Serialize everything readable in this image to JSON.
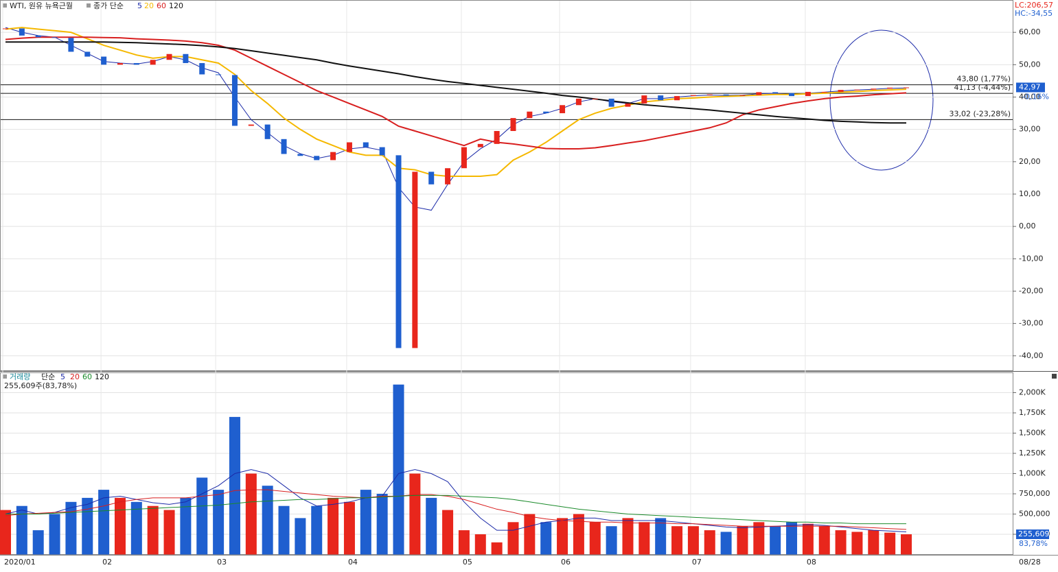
{
  "chart_data": {
    "type": "candlestick",
    "title": "WTI, 원유 뉴욕근월",
    "ma_label": "종가 단순",
    "categories": [
      "2020/01",
      null,
      null,
      null,
      null,
      null,
      "02",
      null,
      null,
      null,
      null,
      null,
      null,
      "03",
      null,
      null,
      null,
      null,
      null,
      null,
      null,
      "04",
      null,
      null,
      null,
      null,
      null,
      null,
      "05",
      null,
      null,
      null,
      null,
      null,
      "06",
      null,
      null,
      null,
      null,
      null,
      null,
      null,
      "07",
      null,
      null,
      null,
      null,
      null,
      null,
      "08",
      null,
      null,
      null,
      null,
      null,
      null
    ],
    "x_end_label": "08/28",
    "close": [
      61.2,
      59,
      58.5,
      58.3,
      54,
      52.5,
      50,
      50.5,
      50,
      51.5,
      53.3,
      50.5,
      47,
      46.8,
      31.1,
      31.5,
      27,
      22.4,
      21.8,
      20.5,
      23,
      26,
      24.5,
      22,
      -37.6,
      16.9,
      13,
      18,
      24.5,
      25.5,
      29.5,
      33.5,
      35.5,
      35,
      37.5,
      39.5,
      39.5,
      37,
      38,
      40.5,
      39,
      40.3,
      40.6,
      40.8,
      40.4,
      40.6,
      41.5,
      41.2,
      40.3,
      41.6,
      41.6,
      42.2,
      42.3,
      42.6,
      42.9,
      42.97
    ],
    "up_color": "#e8261c",
    "down_color": "#1f5fcf",
    "series": [
      {
        "name": "5",
        "color": "#1b2aa8",
        "values": [
          61.5,
          60,
          59,
          58.5,
          56,
          53.5,
          51,
          50.5,
          50.2,
          51,
          52.5,
          51.5,
          49,
          47.5,
          40,
          33,
          29,
          25,
          22.5,
          21,
          22,
          24,
          24.5,
          23.5,
          12,
          6,
          5,
          13,
          20,
          24,
          27,
          31.5,
          34,
          35,
          36.5,
          38.5,
          39.5,
          38.5,
          38,
          39.5,
          39.5,
          40,
          40.4,
          40.6,
          40.5,
          40.6,
          41,
          41.2,
          40.8,
          41.2,
          41.5,
          41.9,
          42.2,
          42.4,
          42.7,
          42.8
        ]
      },
      {
        "name": "20",
        "color": "#f5b800",
        "values": [
          61,
          61.5,
          61,
          60.5,
          60,
          58,
          56,
          54.5,
          53,
          52,
          52.5,
          52.5,
          51.5,
          50.5,
          47,
          42,
          38,
          33.5,
          30,
          27,
          25,
          23,
          22,
          22,
          18,
          17.5,
          16,
          15.5,
          15.5,
          15.5,
          16,
          20.5,
          23,
          26,
          29.5,
          33,
          35,
          36.5,
          37.5,
          38.5,
          39,
          39.5,
          39.7,
          40,
          40.2,
          40.4,
          40.6,
          40.8,
          40.8,
          41,
          41.2,
          41.5,
          41.7,
          42,
          42.2,
          42.4
        ]
      },
      {
        "name": "60",
        "color": "#d81e1e",
        "values": [
          57.8,
          58.2,
          58.5,
          58.5,
          58.5,
          58.5,
          58.4,
          58.3,
          58,
          57.8,
          57.6,
          57.3,
          56.8,
          56,
          54.5,
          52,
          49.5,
          47,
          44.5,
          42,
          40,
          38,
          36,
          34,
          31,
          29.5,
          28,
          26.5,
          25,
          27,
          26,
          25.5,
          24.8,
          24.1,
          24,
          24,
          24.3,
          25,
          25.8,
          26.5,
          27.5,
          28.5,
          29.5,
          30.5,
          32,
          34.5,
          36,
          37,
          38,
          38.8,
          39.5,
          40,
          40.3,
          40.7,
          41,
          41.3
        ]
      },
      {
        "name": "120",
        "color": "#111111",
        "values": [
          57,
          57,
          57,
          57,
          57,
          57,
          57,
          56.9,
          56.8,
          56.6,
          56.4,
          56.2,
          55.9,
          55.5,
          55,
          54.3,
          53.6,
          52.9,
          52.2,
          51.5,
          50.5,
          49.6,
          48.8,
          48,
          47.2,
          46.3,
          45.5,
          44.8,
          44.2,
          43.6,
          43,
          42.4,
          41.8,
          41.2,
          40.5,
          40,
          39.4,
          38.8,
          38.2,
          37.6,
          37.2,
          36.8,
          36.4,
          36,
          35.5,
          35,
          34.5,
          34,
          33.6,
          33.2,
          32.8,
          32.5,
          32.3,
          32.1,
          32,
          32
        ]
      }
    ],
    "ylim": [
      -44.5,
      70
    ],
    "yticks": [
      {
        "value": 60,
        "label": "60,00"
      },
      {
        "value": 50,
        "label": "50,00"
      },
      {
        "value": 40,
        "label": "40,00"
      },
      {
        "value": 30,
        "label": "30,00"
      },
      {
        "value": 20,
        "label": "20,00"
      },
      {
        "value": 10,
        "label": "10,00"
      },
      {
        "value": 0,
        "label": "0,00"
      },
      {
        "value": -10,
        "label": "-10,00"
      },
      {
        "value": -20,
        "label": "-20,00"
      },
      {
        "value": -30,
        "label": "-30,00"
      },
      {
        "value": -40,
        "label": "-40,00"
      }
    ],
    "levels": [
      {
        "value": 43.8,
        "label": "43,80 (1,77%)"
      },
      {
        "value": 41.13,
        "label": "41,13 (-4,44%)"
      },
      {
        "value": 33.02,
        "label": "33,02 (-23,28%)"
      }
    ],
    "last": {
      "value": 42.97,
      "label": "42,97",
      "change": "-0,16%"
    },
    "lc": "LC:206,57",
    "hc": "HC:-34,55",
    "volume": {
      "title": "거래량",
      "ma_label": "단순",
      "info": "255,609주(83,78%)",
      "last_label": "255,609",
      "last_pct": "83,78%",
      "values": [
        550,
        600,
        300,
        500,
        650,
        700,
        800,
        700,
        650,
        600,
        550,
        700,
        950,
        800,
        1700,
        1000,
        850,
        600,
        450,
        600,
        700,
        650,
        800,
        750,
        2100,
        1000,
        700,
        550,
        300,
        250,
        150,
        400,
        500,
        400,
        450,
        500,
        400,
        350,
        450,
        400,
        450,
        350,
        350,
        300,
        280,
        350,
        400,
        350,
        400,
        380,
        350,
        300,
        280,
        300,
        270,
        250
      ],
      "series": [
        {
          "name": "5",
          "color": "#1b2aa8",
          "values": [
            500,
            550,
            500,
            520,
            580,
            620,
            700,
            720,
            680,
            640,
            620,
            650,
            750,
            850,
            1000,
            1050,
            1000,
            850,
            700,
            600,
            620,
            650,
            700,
            720,
            1000,
            1050,
            1000,
            900,
            650,
            450,
            300,
            300,
            350,
            400,
            420,
            450,
            450,
            420,
            420,
            420,
            420,
            400,
            380,
            360,
            340,
            330,
            340,
            350,
            360,
            370,
            360,
            340,
            320,
            300,
            290,
            280
          ]
        },
        {
          "name": "20",
          "color": "#d81e1e",
          "values": [
            480,
            500,
            510,
            520,
            530,
            560,
            600,
            650,
            680,
            700,
            700,
            700,
            720,
            740,
            790,
            800,
            800,
            780,
            760,
            740,
            720,
            710,
            700,
            720,
            720,
            740,
            740,
            720,
            680,
            620,
            560,
            520,
            470,
            440,
            420,
            410,
            400,
            400,
            390,
            390,
            390,
            380,
            380,
            370,
            360,
            350,
            350,
            350,
            350,
            350,
            350,
            350,
            340,
            330,
            320,
            310
          ]
        },
        {
          "name": "60",
          "color": "#1a8a2a",
          "values": [
            500,
            500,
            500,
            510,
            520,
            530,
            540,
            550,
            560,
            570,
            580,
            590,
            600,
            610,
            630,
            650,
            660,
            670,
            680,
            680,
            690,
            700,
            700,
            710,
            720,
            730,
            730,
            730,
            720,
            710,
            700,
            680,
            650,
            620,
            590,
            560,
            540,
            520,
            500,
            490,
            480,
            470,
            460,
            450,
            440,
            430,
            420,
            410,
            400,
            400,
            390,
            390,
            380,
            380,
            380,
            380
          ]
        },
        {
          "name": "120",
          "color": "#111111",
          "values": null
        }
      ],
      "ylim": [
        0,
        2250
      ],
      "yticks": [
        {
          "value": 2000,
          "label": "2,000K"
        },
        {
          "value": 1750,
          "label": "1,750K"
        },
        {
          "value": 1500,
          "label": "1,500K"
        },
        {
          "value": 1250,
          "label": "1,250K"
        },
        {
          "value": 1000,
          "label": "1,000K"
        },
        {
          "value": 750,
          "label": "750,000"
        },
        {
          "value": 500,
          "label": "500,000"
        },
        {
          "value": 250,
          "label": "250,000"
        }
      ]
    }
  }
}
